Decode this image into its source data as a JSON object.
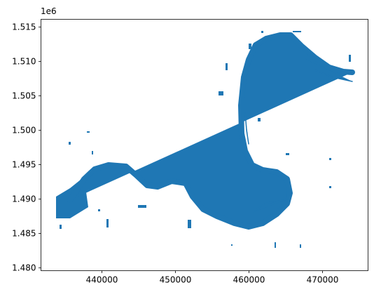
{
  "chart_data": {
    "type": "map",
    "offset_text": "1e6",
    "xlim": [
      431714,
      476190
    ],
    "xticks": [
      440000,
      450000,
      460000,
      470000
    ],
    "ylim": [
      1479590,
      1516120
    ],
    "yticks": [
      {
        "value": 1480000,
        "label": "1.480"
      },
      {
        "value": 1485000,
        "label": "1.485"
      },
      {
        "value": 1490000,
        "label": "1.490"
      },
      {
        "value": 1495000,
        "label": "1.495"
      },
      {
        "value": 1500000,
        "label": "1.500"
      },
      {
        "value": 1505000,
        "label": "1.505"
      },
      {
        "value": 1510000,
        "label": "1.510"
      },
      {
        "value": 1515000,
        "label": "1.515"
      }
    ],
    "color": "#1f77b4"
  }
}
